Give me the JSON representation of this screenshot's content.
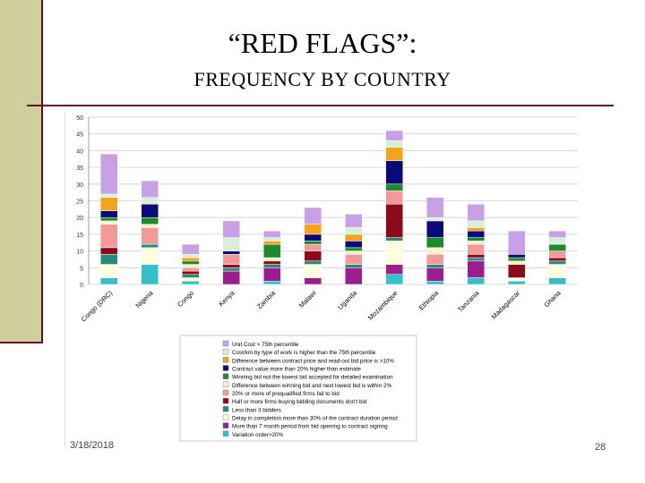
{
  "slide": {
    "title": "“RED FLAGS”:",
    "subtitle": "FREQUENCY BY COUNTRY",
    "date": "3/18/2018",
    "page_number": "28"
  },
  "chart_data": {
    "type": "bar",
    "stacked": true,
    "ylim": [
      0,
      50
    ],
    "yticks": [
      0,
      5,
      10,
      15,
      20,
      25,
      30,
      35,
      40,
      45,
      50
    ],
    "grid": true,
    "legend_position": "bottom",
    "categories": [
      "Congo (DRC)",
      "Nigeria",
      "Congo",
      "Kenya",
      "Zambia",
      "Malawi",
      "Uganda",
      "Mozambique",
      "Ethiopia",
      "Tanzania",
      "Madagascar",
      "Ghana"
    ],
    "series": [
      {
        "name": "Variation order>20%",
        "color": "#33c0c8",
        "values": [
          2,
          6,
          1,
          0,
          1,
          0,
          0,
          3,
          1,
          2,
          1,
          2
        ]
      },
      {
        "name": "More than 7 month period from bid opening to contract signing",
        "color": "#9c1e8e",
        "values": [
          0,
          0,
          0,
          4,
          4,
          2,
          5,
          3,
          4,
          5,
          0,
          0
        ]
      },
      {
        "name": "Delay in completion more than 30% of the contract duration period",
        "color": "#fefedc",
        "values": [
          4,
          5,
          1,
          0,
          0,
          4,
          0,
          7,
          0,
          0,
          1,
          4
        ]
      },
      {
        "name": "Less than 3 bidders",
        "color": "#2a8a7a",
        "values": [
          3,
          1,
          1,
          1,
          1,
          1,
          1,
          1,
          1,
          1,
          0,
          1
        ]
      },
      {
        "name": "Half or more firms buying bidding documents don't bid",
        "color": "#8b0b1a",
        "values": [
          2,
          0,
          1,
          1,
          1,
          3,
          0,
          10,
          0,
          1,
          4,
          1
        ]
      },
      {
        "name": "20% or more of prequalified firms fail to bid",
        "color": "#f29a9a",
        "values": [
          7,
          5,
          1,
          3,
          0,
          2,
          3,
          4,
          3,
          3,
          0,
          2
        ]
      },
      {
        "name": "Difference between winning bid and next lowest bid is within 2%",
        "color": "#fef0c8",
        "values": [
          1,
          1,
          1,
          0,
          1,
          0,
          1,
          0,
          2,
          1,
          1,
          0
        ]
      },
      {
        "name": "Winning bid not the lowest bid accepted for detailed examination",
        "color": "#1a8c2a",
        "values": [
          1,
          2,
          1,
          0,
          4,
          1,
          1,
          2,
          3,
          1,
          1,
          2
        ]
      },
      {
        "name": "Contract value more than 20% higher than estimate",
        "color": "#0a0a7a",
        "values": [
          2,
          4,
          0,
          1,
          0,
          2,
          2,
          7,
          5,
          2,
          1,
          0
        ]
      },
      {
        "name": "Difference between contract price and read-out bid price is >10%",
        "color": "#f5a21d",
        "values": [
          4,
          0,
          1,
          0,
          1,
          3,
          2,
          4,
          0,
          1,
          0,
          0
        ]
      },
      {
        "name": "Cost/km by type of work is higher than the 75th percentile",
        "color": "#d6f0d8",
        "values": [
          1,
          2,
          1,
          4,
          1,
          0,
          2,
          2,
          1,
          2,
          0,
          2
        ]
      },
      {
        "name": "Unit Cost > 75th percentile",
        "color": "#c8a0e6",
        "values": [
          12,
          5,
          3,
          5,
          2,
          5,
          4,
          3,
          6,
          5,
          7,
          2
        ]
      }
    ]
  }
}
